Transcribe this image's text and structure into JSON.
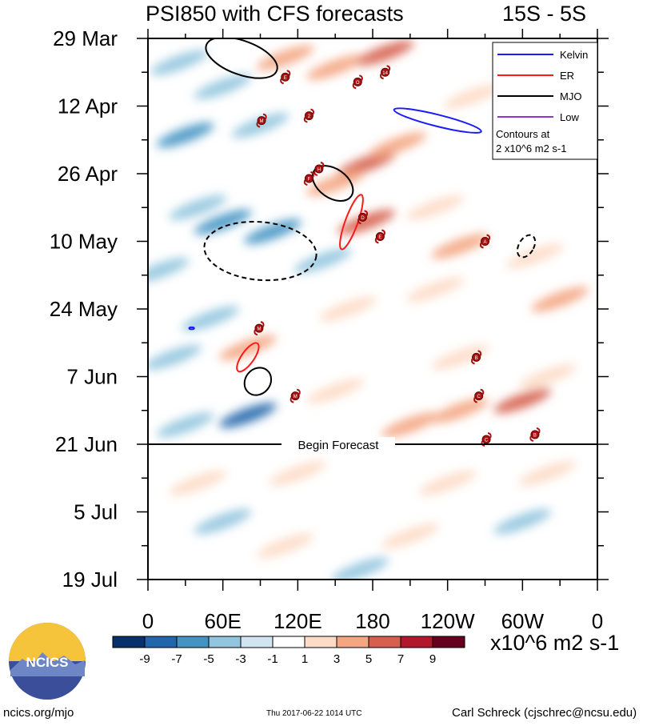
{
  "title": "PSI850 with CFS forecasts",
  "region": "15S - 5S",
  "units": "x10^6 m2 s-1",
  "footer": {
    "left": "ncics.org/mjo",
    "middle": "Thu 2017-06-22 1014 UTC",
    "right": "Carl Schreck (cjschrec@ncsu.edu)"
  },
  "logo_text": "NCICS",
  "chart_data": {
    "type": "heatmap",
    "title": "PSI850 with CFS forecasts",
    "subtitle": "15S - 5S",
    "x_ticks": [
      "0",
      "60E",
      "120E",
      "180",
      "120W",
      "60W",
      "0"
    ],
    "x_lon": [
      0,
      60,
      120,
      180,
      240,
      300,
      360
    ],
    "y_ticks": [
      "29 Mar",
      "12 Apr",
      "26 Apr",
      "10 May",
      "24 May",
      "7 Jun",
      "21 Jun",
      "5 Jul",
      "19 Jul"
    ],
    "y_day": [
      0,
      14,
      28,
      42,
      56,
      70,
      84,
      98,
      112
    ],
    "forecast_line_day": 84,
    "forecast_label": "Begin Forecast",
    "legend": {
      "entries": [
        {
          "label": "Kelvin",
          "color": "#1a1aff"
        },
        {
          "label": "ER",
          "color": "#ff1a1a"
        },
        {
          "label": "MJO",
          "color": "#000000"
        },
        {
          "label": "Low",
          "color": "#9933cc"
        }
      ],
      "note_line1": "Contours at",
      "note_line2": "2 x10^6 m2 s-1"
    },
    "colorbar": {
      "labels": [
        "-9",
        "-7",
        "-5",
        "-3",
        "-1",
        "1",
        "3",
        "5",
        "7",
        "9"
      ],
      "colors": [
        "#08306b",
        "#2166ac",
        "#4393c3",
        "#92c5de",
        "#d1e5f0",
        "#ffffff",
        "#fddbc7",
        "#f4a582",
        "#d6604d",
        "#b2182b",
        "#67001f"
      ]
    },
    "anomaly_blobs": [
      {
        "lon": 25,
        "day": 5,
        "v": -3
      },
      {
        "lon": 60,
        "day": 10,
        "v": -3
      },
      {
        "lon": 30,
        "day": 20,
        "v": -5
      },
      {
        "lon": 90,
        "day": 18,
        "v": -3
      },
      {
        "lon": 110,
        "day": 4,
        "v": 5
      },
      {
        "lon": 150,
        "day": 6,
        "v": 5
      },
      {
        "lon": 190,
        "day": 3,
        "v": 7
      },
      {
        "lon": 260,
        "day": 12,
        "v": 3
      },
      {
        "lon": 175,
        "day": 26,
        "v": 7
      },
      {
        "lon": 150,
        "day": 30,
        "v": 5
      },
      {
        "lon": 200,
        "day": 22,
        "v": 5
      },
      {
        "lon": 230,
        "day": 35,
        "v": 3
      },
      {
        "lon": 60,
        "day": 38,
        "v": -5
      },
      {
        "lon": 100,
        "day": 40,
        "v": -5
      },
      {
        "lon": 40,
        "day": 35,
        "v": -3
      },
      {
        "lon": 175,
        "day": 38,
        "v": 7
      },
      {
        "lon": 140,
        "day": 46,
        "v": -3
      },
      {
        "lon": 10,
        "day": 48,
        "v": -3
      },
      {
        "lon": 250,
        "day": 43,
        "v": 5
      },
      {
        "lon": 310,
        "day": 45,
        "v": 3
      },
      {
        "lon": 230,
        "day": 52,
        "v": 3
      },
      {
        "lon": 330,
        "day": 54,
        "v": 5
      },
      {
        "lon": 50,
        "day": 58,
        "v": -3
      },
      {
        "lon": 160,
        "day": 56,
        "v": 3
      },
      {
        "lon": 80,
        "day": 64,
        "v": 5
      },
      {
        "lon": 20,
        "day": 66,
        "v": -3
      },
      {
        "lon": 250,
        "day": 66,
        "v": 3
      },
      {
        "lon": 320,
        "day": 70,
        "v": 3
      },
      {
        "lon": 150,
        "day": 73,
        "v": 3
      },
      {
        "lon": 80,
        "day": 78,
        "v": -7
      },
      {
        "lon": 250,
        "day": 77,
        "v": 5
      },
      {
        "lon": 300,
        "day": 75,
        "v": 7
      },
      {
        "lon": 210,
        "day": 80,
        "v": 5
      },
      {
        "lon": 30,
        "day": 80,
        "v": -3
      },
      {
        "lon": 40,
        "day": 92,
        "v": 3
      },
      {
        "lon": 120,
        "day": 90,
        "v": 3
      },
      {
        "lon": 240,
        "day": 92,
        "v": 3
      },
      {
        "lon": 320,
        "day": 90,
        "v": 3
      },
      {
        "lon": 60,
        "day": 100,
        "v": -3
      },
      {
        "lon": 300,
        "day": 100,
        "v": -3
      },
      {
        "lon": 110,
        "day": 105,
        "v": 3
      },
      {
        "lon": 210,
        "day": 103,
        "v": 3
      },
      {
        "lon": 170,
        "day": 110,
        "v": -3
      }
    ],
    "contours": [
      {
        "wave": "Kelvin",
        "style": "solid",
        "lon": 232,
        "day": 17,
        "rx": 36,
        "ry": 1.2,
        "angle": 14
      },
      {
        "wave": "MJO",
        "style": "solid",
        "lon": 75,
        "day": 4,
        "rx": 30,
        "ry": 3.5,
        "angle": 20
      },
      {
        "wave": "MJO",
        "style": "solid",
        "lon": 148,
        "day": 30,
        "rx": 18,
        "ry": 3,
        "angle": 35
      },
      {
        "wave": "ER",
        "style": "solid",
        "lon": 163,
        "day": 38,
        "rx": 5,
        "ry": 6,
        "angle": 20
      },
      {
        "wave": "MJO",
        "style": "dashed",
        "lon": 90,
        "day": 44,
        "rx": 45,
        "ry": 6,
        "angle": 5
      },
      {
        "wave": "MJO",
        "style": "dashed",
        "lon": 303,
        "day": 43,
        "rx": 6,
        "ry": 2.5,
        "angle": 30
      },
      {
        "wave": "ER",
        "style": "solid",
        "lon": 80,
        "day": 66,
        "rx": 5,
        "ry": 3.5,
        "angle": 35
      },
      {
        "wave": "MJO",
        "style": "solid",
        "lon": 88,
        "day": 71,
        "rx": 10,
        "ry": 3,
        "angle": 40
      },
      {
        "wave": "Kelvin",
        "style": "solid",
        "lon": 35,
        "day": 60,
        "rx": 2,
        "ry": 0.2,
        "angle": 0
      }
    ],
    "storms": [
      {
        "label": "E",
        "lon": 110,
        "day": 8
      },
      {
        "label": "O",
        "lon": 168,
        "day": 9
      },
      {
        "label": "14",
        "lon": 190,
        "day": 7
      },
      {
        "label": "M",
        "lon": 91,
        "day": 17
      },
      {
        "label": "2",
        "lon": 129,
        "day": 16
      },
      {
        "label": "H",
        "lon": 137,
        "day": 27
      },
      {
        "label": "F",
        "lon": 129,
        "day": 29
      },
      {
        "label": "D",
        "lon": 172,
        "day": 37
      },
      {
        "label": "E",
        "lon": 186,
        "day": 41
      },
      {
        "label": "A",
        "lon": 270,
        "day": 42
      },
      {
        "label": "M",
        "lon": 89,
        "day": 60
      },
      {
        "label": "B",
        "lon": 263,
        "day": 66
      },
      {
        "label": "M",
        "lon": 118,
        "day": 74
      },
      {
        "label": "C",
        "lon": 265,
        "day": 74
      },
      {
        "label": "C",
        "lon": 271,
        "day": 83
      },
      {
        "label": "B",
        "lon": 310,
        "day": 82
      }
    ]
  }
}
